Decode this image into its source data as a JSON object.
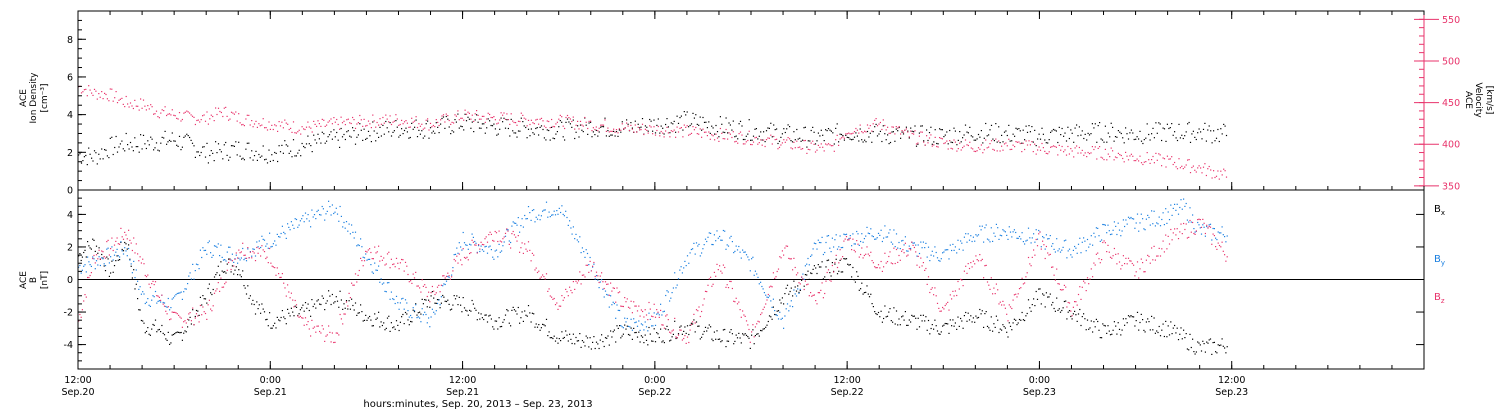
{
  "figure": {
    "xlabel": "hours:minutes, Sep. 20, 2013 – Sep. 23, 2013",
    "x_ticks": [
      {
        "hours": 0,
        "time": "12:00",
        "date": "Sep.20"
      },
      {
        "hours": 12,
        "time": "0:00",
        "date": "Sep.21"
      },
      {
        "hours": 24,
        "time": "12:00",
        "date": "Sep.21"
      },
      {
        "hours": 36,
        "time": "0:00",
        "date": "Sep.22"
      },
      {
        "hours": 48,
        "time": "12:00",
        "date": "Sep.22"
      },
      {
        "hours": 60,
        "time": "0:00",
        "date": "Sep.23"
      },
      {
        "hours": 72,
        "time": "12:00",
        "date": "Sep.23"
      }
    ],
    "colors": {
      "density": "#000000",
      "velocity": "#e8336b",
      "bx": "#000000",
      "by": "#1a7fe0",
      "bz": "#e8336b"
    }
  },
  "chart_data": [
    {
      "type": "scatter",
      "panel": "top",
      "ylabel_left": [
        "ACE",
        "Ion Density",
        "[cm⁻³]"
      ],
      "ylabel_right": [
        "ACE",
        "Velocity",
        "[km/s]"
      ],
      "xlim_hours": [
        0,
        84
      ],
      "ylim_left": [
        0,
        9.5
      ],
      "yticks_left": [
        0,
        2,
        4,
        6,
        8
      ],
      "ylim_right": [
        345,
        560
      ],
      "yticks_right": [
        350,
        400,
        450,
        500,
        550
      ],
      "series": [
        {
          "name": "Ion Density",
          "axis": "left",
          "hours": [
            0,
            1,
            2,
            3,
            4,
            5,
            6,
            7,
            8,
            9,
            10,
            12,
            14,
            16,
            18,
            20,
            22,
            24,
            26,
            28,
            30,
            32,
            34,
            36,
            38,
            40,
            42,
            44,
            46,
            48,
            50,
            52,
            54,
            56,
            58,
            60,
            62,
            64,
            66,
            68,
            70,
            71.7
          ],
          "values": [
            1.9,
            1.8,
            2.3,
            2.5,
            2.5,
            2.6,
            2.7,
            2.4,
            2.0,
            2.1,
            2.2,
            2.0,
            2.4,
            2.7,
            3.1,
            3.3,
            3.3,
            3.6,
            3.4,
            3.3,
            3.2,
            3.4,
            3.3,
            3.5,
            3.7,
            3.4,
            3.2,
            3.0,
            2.8,
            3.1,
            3.0,
            2.9,
            2.9,
            3.1,
            3.0,
            2.9,
            3.0,
            3.1,
            3.0,
            3.1,
            3.1,
            3.0
          ]
        },
        {
          "name": "Velocity",
          "axis": "right",
          "hours": [
            0,
            1,
            2,
            3,
            4,
            5,
            6,
            7,
            8,
            9,
            10,
            12,
            14,
            16,
            18,
            20,
            22,
            24,
            26,
            28,
            30,
            32,
            34,
            36,
            38,
            40,
            42,
            44,
            46,
            47,
            48,
            50,
            52,
            54,
            56,
            58,
            60,
            62,
            64,
            66,
            68,
            70,
            71.7
          ],
          "values": [
            470,
            462,
            460,
            450,
            448,
            440,
            436,
            432,
            432,
            440,
            432,
            425,
            420,
            425,
            428,
            430,
            425,
            435,
            432,
            430,
            428,
            425,
            420,
            418,
            416,
            412,
            408,
            402,
            396,
            396,
            418,
            425,
            410,
            402,
            398,
            400,
            396,
            392,
            390,
            385,
            380,
            372,
            362
          ]
        }
      ]
    },
    {
      "type": "scatter",
      "panel": "bottom",
      "ylabel_left": [
        "ACE",
        "B",
        "[nT]"
      ],
      "xlim_hours": [
        0,
        84
      ],
      "ylim": [
        -5.5,
        5.5
      ],
      "yticks": [
        -4,
        -2,
        0,
        2,
        4
      ],
      "zero_line": true,
      "legend_placement": "right",
      "series": [
        {
          "name": "Bx",
          "legend": {
            "base": "B",
            "sub": "x"
          },
          "hours": [
            0,
            1,
            2,
            3,
            4,
            5,
            6,
            7,
            8,
            9,
            10,
            11,
            12,
            14,
            16,
            18,
            20,
            22,
            24,
            26,
            28,
            30,
            32,
            34,
            36,
            38,
            40,
            42,
            44,
            46,
            48,
            50,
            52,
            54,
            56,
            58,
            60,
            62,
            64,
            66,
            68,
            70,
            71.7
          ],
          "values": [
            1.5,
            2.3,
            0.5,
            2.5,
            -2.8,
            -3.0,
            -3.8,
            -2.5,
            -1.0,
            1.0,
            0.8,
            -1.5,
            -2.5,
            -2.0,
            -1.0,
            -2.2,
            -2.8,
            -1.2,
            -1.5,
            -2.5,
            -2.0,
            -3.5,
            -3.8,
            -3.2,
            -3.5,
            -2.8,
            -3.5,
            -3.7,
            -1.0,
            0.5,
            1.0,
            -2.0,
            -2.5,
            -3.0,
            -2.2,
            -3.0,
            -1.0,
            -2.0,
            -3.2,
            -2.5,
            -3.0,
            -4.2,
            -4.0
          ]
        },
        {
          "name": "By",
          "legend": {
            "base": "B",
            "sub": "y"
          },
          "hours": [
            0,
            2,
            3,
            4,
            6,
            8,
            10,
            12,
            14,
            16,
            18,
            20,
            22,
            24,
            26,
            28,
            30,
            32,
            34,
            36,
            38,
            40,
            42,
            44,
            46,
            48,
            50,
            52,
            54,
            56,
            58,
            60,
            62,
            64,
            66,
            68,
            69,
            70,
            71.7
          ],
          "values": [
            0.8,
            1.5,
            2.0,
            -1.0,
            -1.5,
            2.0,
            1.5,
            2.5,
            3.5,
            4.5,
            1.5,
            -1.5,
            -2.5,
            2.5,
            1.8,
            4.0,
            4.5,
            1.0,
            -2.8,
            -2.5,
            1.5,
            2.8,
            1.0,
            -2.5,
            2.0,
            2.5,
            3.0,
            2.0,
            1.5,
            2.8,
            3.0,
            2.5,
            1.8,
            3.0,
            3.5,
            4.0,
            4.5,
            3.0,
            2.8
          ]
        },
        {
          "name": "Bz",
          "legend": {
            "base": "B",
            "sub": "z"
          },
          "hours": [
            0,
            1,
            2,
            3,
            4,
            5,
            6,
            8,
            10,
            12,
            14,
            16,
            18,
            20,
            22,
            24,
            26,
            28,
            30,
            32,
            34,
            36,
            38,
            40,
            42,
            44,
            46,
            48,
            50,
            52,
            54,
            56,
            58,
            60,
            62,
            64,
            66,
            68,
            70,
            71.7
          ],
          "values": [
            -2.5,
            1.5,
            2.0,
            3.0,
            1.0,
            -1.0,
            -2.5,
            -2.0,
            2.0,
            1.5,
            -2.8,
            -3.5,
            2.0,
            1.0,
            -1.0,
            1.5,
            3.0,
            2.0,
            -1.5,
            1.0,
            -1.5,
            -2.0,
            -3.5,
            1.0,
            -3.5,
            2.0,
            -1.5,
            2.5,
            1.0,
            2.0,
            -2.0,
            1.5,
            -2.0,
            2.5,
            -1.8,
            2.0,
            0.5,
            2.5,
            3.5,
            1.5
          ]
        }
      ]
    }
  ]
}
